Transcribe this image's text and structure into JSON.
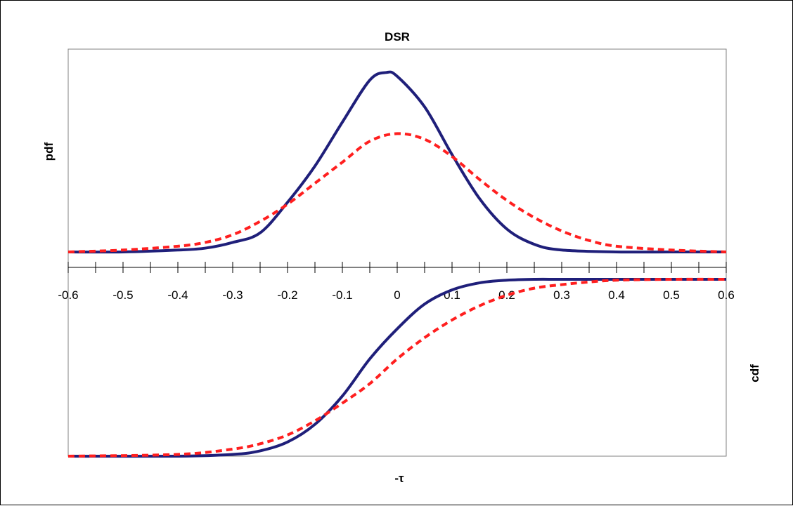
{
  "chart_data": {
    "type": "line",
    "title": "DSR",
    "xlabel": "-τ",
    "ylabel_top": "pdf",
    "ylabel_bottom": "cdf",
    "xlim": [
      -0.6,
      0.6
    ],
    "tick_labels": [
      "-0.6",
      "-0.5",
      "-0.4",
      "-0.3",
      "-0.2",
      "-0.1",
      "0",
      "0.1",
      "0.2",
      "0.3",
      "0.4",
      "0.5",
      "0.6"
    ],
    "panels": [
      {
        "name": "pdf",
        "series": [
          {
            "style": "solid",
            "color": "#1f1f7a",
            "x": [
              -0.6,
              -0.5,
              -0.4,
              -0.35,
              -0.3,
              -0.25,
              -0.2,
              -0.15,
              -0.1,
              -0.05,
              -0.02,
              0,
              0.05,
              0.1,
              0.15,
              0.2,
              0.25,
              0.3,
              0.4,
              0.5,
              0.6
            ],
            "y": [
              0.0,
              0.0,
              0.01,
              0.02,
              0.05,
              0.1,
              0.26,
              0.45,
              0.68,
              0.9,
              0.94,
              0.92,
              0.76,
              0.51,
              0.28,
              0.12,
              0.04,
              0.01,
              0.0,
              0.0,
              0.0
            ]
          },
          {
            "style": "dashed",
            "color": "#ff1f1f",
            "x": [
              -0.6,
              -0.5,
              -0.4,
              -0.35,
              -0.3,
              -0.25,
              -0.2,
              -0.15,
              -0.1,
              -0.05,
              0,
              0.05,
              0.1,
              0.15,
              0.2,
              0.25,
              0.3,
              0.35,
              0.4,
              0.5,
              0.6
            ],
            "y": [
              0.0,
              0.01,
              0.03,
              0.05,
              0.09,
              0.16,
              0.25,
              0.36,
              0.47,
              0.58,
              0.62,
              0.59,
              0.5,
              0.38,
              0.27,
              0.18,
              0.11,
              0.06,
              0.03,
              0.01,
              0.0
            ]
          }
        ]
      },
      {
        "name": "cdf",
        "series": [
          {
            "style": "solid",
            "color": "#1f1f7a",
            "x": [
              -0.6,
              -0.4,
              -0.3,
              -0.25,
              -0.2,
              -0.15,
              -0.1,
              -0.05,
              0,
              0.05,
              0.1,
              0.15,
              0.2,
              0.25,
              0.3,
              0.4,
              0.6
            ],
            "y": [
              0.0,
              0.0,
              0.01,
              0.03,
              0.08,
              0.18,
              0.34,
              0.55,
              0.72,
              0.86,
              0.94,
              0.98,
              0.995,
              1.0,
              1.0,
              1.0,
              1.0
            ]
          },
          {
            "style": "dashed",
            "color": "#ff1f1f",
            "x": [
              -0.6,
              -0.4,
              -0.3,
              -0.25,
              -0.2,
              -0.15,
              -0.1,
              -0.05,
              0,
              0.05,
              0.1,
              0.15,
              0.2,
              0.25,
              0.3,
              0.35,
              0.4,
              0.5,
              0.6
            ],
            "y": [
              0.0,
              0.01,
              0.04,
              0.07,
              0.12,
              0.2,
              0.3,
              0.41,
              0.55,
              0.67,
              0.77,
              0.85,
              0.91,
              0.95,
              0.97,
              0.985,
              0.995,
              1.0,
              1.0
            ]
          }
        ]
      }
    ]
  }
}
